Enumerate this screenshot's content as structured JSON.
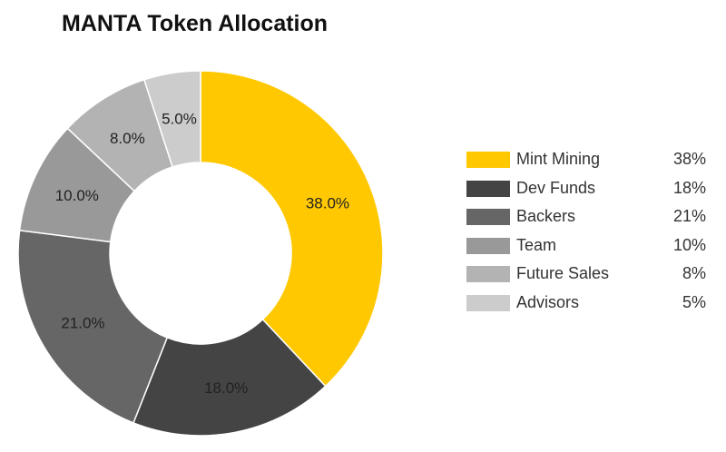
{
  "chart_data": {
    "type": "pie",
    "donut": true,
    "title": "MANTA Token Allocation",
    "categories": [
      "Mint Mining",
      "Dev Funds",
      "Backers",
      "Team",
      "Future Sales",
      "Advisors"
    ],
    "values": [
      38.0,
      18.0,
      21.0,
      10.0,
      8.0,
      5.0
    ],
    "slice_labels": [
      "38.0%",
      "18.0%",
      "21.0%",
      "10.0%",
      "8.0%",
      "5.0%"
    ],
    "legend_values": [
      "38%",
      "18%",
      "21%",
      "10%",
      "8%",
      "5%"
    ],
    "colors": [
      "#ffc800",
      "#444444",
      "#666666",
      "#999999",
      "#b3b3b3",
      "#cccccc"
    ],
    "legend_position": "right"
  }
}
